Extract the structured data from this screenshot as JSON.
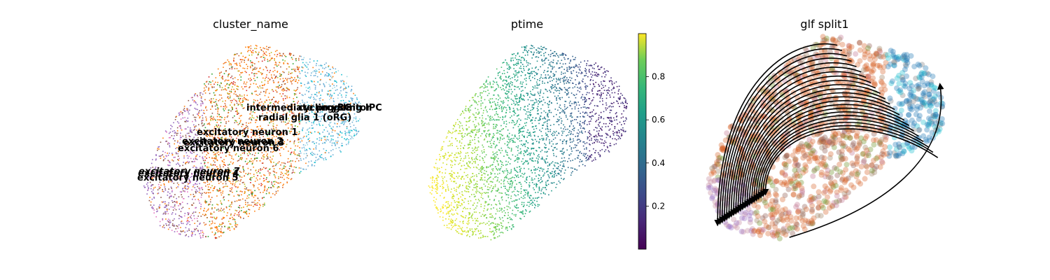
{
  "chart_data": [
    {
      "type": "scatter",
      "title": "cluster_name",
      "xlabel": "",
      "ylabel": "",
      "grid": false,
      "labels_on_data": [
        {
          "text": "intermediate progenitor"
        },
        {
          "text": "cycling RG"
        },
        {
          "text": "cycling IPC"
        },
        {
          "text": "radial glia 1 (oRG)"
        },
        {
          "text": "excitatory neuron 1"
        },
        {
          "text": "excitatory neuron 2"
        },
        {
          "text": "excitatory neuron 3"
        },
        {
          "text": "excitatory neuron 6"
        },
        {
          "text": "excitatory neuron 7"
        },
        {
          "text": "excitatory neuron 4"
        },
        {
          "text": "excitatory neuron 5"
        }
      ],
      "palette": [
        "#ff7f0e",
        "#d6642c",
        "#9467bd",
        "#8c564b",
        "#2ca02c",
        "#1f77b4",
        "#17becf",
        "#e377c2",
        "#bcbd22",
        "#d62728"
      ]
    },
    {
      "type": "scatter",
      "title": "ptime",
      "xlabel": "",
      "ylabel": "",
      "grid": false,
      "colorbar": {
        "colormap": "viridis",
        "range": [
          0,
          1
        ],
        "ticks": [
          0.2,
          0.4,
          0.6,
          0.8
        ],
        "tick_labels": [
          "0.2",
          "0.4",
          "0.6",
          "0.8"
        ]
      }
    },
    {
      "type": "scatter",
      "title": "glf split1",
      "xlabel": "",
      "ylabel": "",
      "grid": false,
      "overlay": "streamlines",
      "stream_color": "#000000"
    }
  ]
}
